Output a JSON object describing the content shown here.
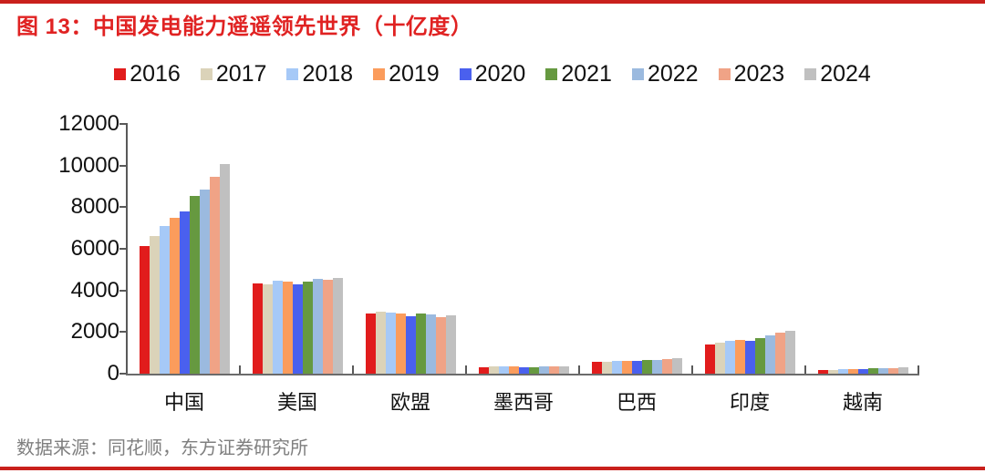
{
  "page": {
    "title": "图 13：中国发电能力遥遥领先世界（十亿度）",
    "source_note": "数据来源：同花顺，东方证券研究所",
    "title_color": "#E02222",
    "rule_color": "#C9201C",
    "source_color": "#7F7F7F",
    "axis_color": "#595959"
  },
  "chart_data": {
    "type": "bar",
    "title": "中国发电能力遥遥领先世界（十亿度）",
    "categories": [
      "中国",
      "美国",
      "欧盟",
      "墨西哥",
      "巴西",
      "印度",
      "越南"
    ],
    "series": [
      {
        "name": "2016",
        "color": "#E11C1C",
        "values": [
          6142,
          4327,
          2870,
          320,
          580,
          1400,
          175
        ]
      },
      {
        "name": "2017",
        "color": "#DBD3B9",
        "values": [
          6604,
          4281,
          2980,
          330,
          590,
          1470,
          190
        ]
      },
      {
        "name": "2018",
        "color": "#A6C9F7",
        "values": [
          7112,
          4461,
          2930,
          335,
          600,
          1585,
          210
        ]
      },
      {
        "name": "2019",
        "color": "#FB9C5C",
        "values": [
          7503,
          4411,
          2880,
          330,
          625,
          1625,
          225
        ]
      },
      {
        "name": "2020",
        "color": "#4A60EE",
        "values": [
          7779,
          4297,
          2750,
          315,
          620,
          1560,
          235
        ]
      },
      {
        "name": "2021",
        "color": "#669940",
        "values": [
          8534,
          4406,
          2910,
          325,
          655,
          1715,
          245
        ]
      },
      {
        "name": "2022",
        "color": "#9BBADF",
        "values": [
          8849,
          4547,
          2850,
          340,
          675,
          1860,
          260
        ]
      },
      {
        "name": "2023",
        "color": "#F0A386",
        "values": [
          9456,
          4494,
          2700,
          350,
          710,
          1955,
          275
        ]
      },
      {
        "name": "2024",
        "color": "#C0C0C0",
        "values": [
          10087,
          4620,
          2790,
          355,
          740,
          2040,
          300
        ]
      }
    ],
    "ylim": [
      0,
      12000
    ],
    "yticks": [
      0,
      2000,
      4000,
      6000,
      8000,
      10000,
      12000
    ],
    "xlabel": "",
    "ylabel": "",
    "grid": false,
    "legend_position": "top"
  }
}
